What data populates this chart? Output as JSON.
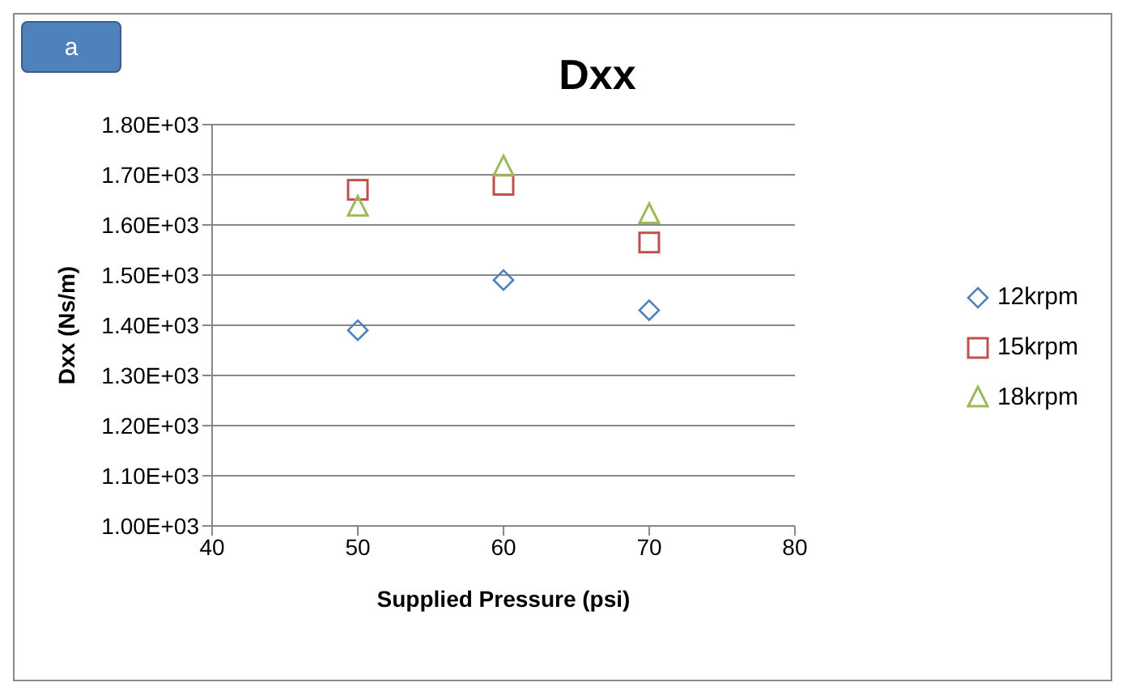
{
  "chart_data": {
    "type": "scatter",
    "title": "Dxx",
    "xlabel": "Supplied Pressure (psi)",
    "ylabel": "Dxx (Ns/m)",
    "annotations": [
      "a"
    ],
    "x": [
      50,
      60,
      70
    ],
    "series": [
      {
        "name": "12krpm",
        "color": "#4f81bd",
        "marker": "diamond",
        "values": [
          1390,
          1490,
          1430
        ]
      },
      {
        "name": "15krpm",
        "color": "#c0504d",
        "marker": "square",
        "values": [
          1670,
          1680,
          1565
        ]
      },
      {
        "name": "18krpm",
        "color": "#9bbb59",
        "marker": "triangle",
        "values": [
          1635,
          1715,
          1620
        ]
      }
    ],
    "xlim": [
      40,
      80
    ],
    "xticks": [
      40,
      50,
      60,
      70,
      80
    ],
    "ylim": [
      1000,
      1800
    ],
    "yticks": [
      {
        "value": 1000,
        "label": "1.00E+03"
      },
      {
        "value": 1100,
        "label": "1.10E+03"
      },
      {
        "value": 1200,
        "label": "1.20E+03"
      },
      {
        "value": 1300,
        "label": "1.30E+03"
      },
      {
        "value": 1400,
        "label": "1.40E+03"
      },
      {
        "value": 1500,
        "label": "1.50E+03"
      },
      {
        "value": 1600,
        "label": "1.60E+03"
      },
      {
        "value": 1700,
        "label": "1.70E+03"
      },
      {
        "value": 1800,
        "label": "1.80E+03"
      }
    ],
    "grid": "y",
    "legend": "right"
  }
}
